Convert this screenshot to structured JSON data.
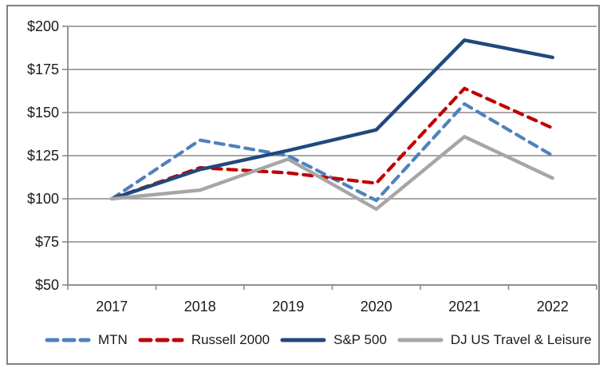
{
  "chart_data": {
    "type": "line",
    "title": "",
    "categories": [
      "2017",
      "2018",
      "2019",
      "2020",
      "2021",
      "2022"
    ],
    "series": [
      {
        "name": "MTN",
        "color": "#4F81BD",
        "style": "dashed",
        "values": [
          100,
          134,
          125,
          99,
          155,
          125
        ]
      },
      {
        "name": "Russell 2000",
        "color": "#C00000",
        "style": "dashed",
        "values": [
          100,
          118,
          115,
          109,
          164,
          141
        ]
      },
      {
        "name": "S&P 500",
        "color": "#1F497D",
        "style": "solid",
        "values": [
          100,
          117,
          128,
          140,
          192,
          182
        ]
      },
      {
        "name": "DJ US Travel & Leisure",
        "color": "#A6A6A6",
        "style": "solid",
        "values": [
          100,
          105,
          123,
          94,
          136,
          112
        ]
      }
    ],
    "y_axis": {
      "min": 50,
      "max": 200,
      "step": 25,
      "tick_labels": [
        "$50",
        "$75",
        "$100",
        "$125",
        "$150",
        "$175",
        "$200"
      ]
    },
    "x_axis": {
      "tick_labels": [
        "2017",
        "2018",
        "2019",
        "2020",
        "2021",
        "2022"
      ]
    },
    "ylim": [
      50,
      200
    ],
    "grid": true,
    "legend_position": "bottom",
    "gridline_color": "#8a8a8a",
    "text_color": "#1a1a1a",
    "frame_border_color": "#808080",
    "background": "#ffffff"
  }
}
